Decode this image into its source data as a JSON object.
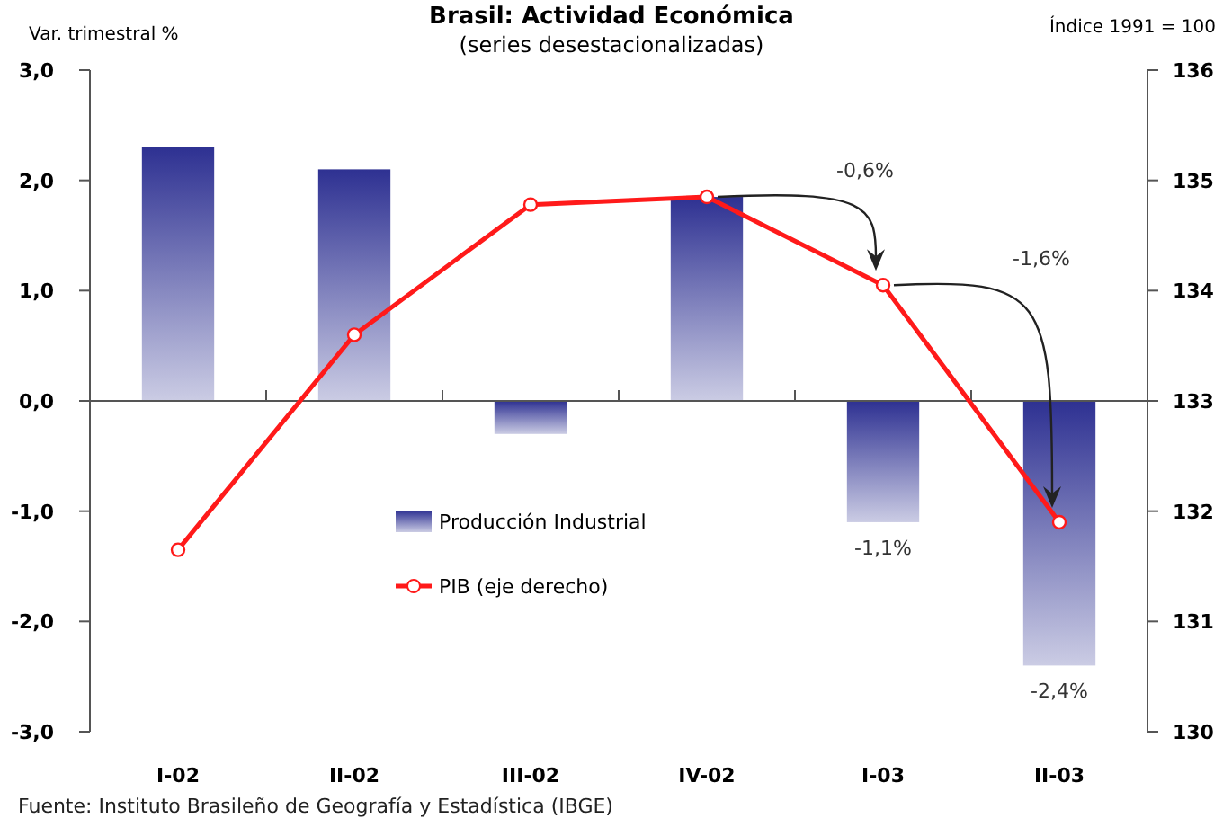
{
  "chart_data": {
    "type": "bar",
    "title": "Brasil: Actividad Económica",
    "subtitle": "(series desestacionalizadas)",
    "ylabel": "Var. trimestral %",
    "y2label": "Índice 1991 = 100",
    "categories": [
      "I-02",
      "II-02",
      "III-02",
      "IV-02",
      "I-03",
      "II-03"
    ],
    "series": [
      {
        "name": "Producción Industrial",
        "color": "#2e3192",
        "values": [
          2.3,
          2.1,
          -0.3,
          1.85,
          -1.1,
          -2.4
        ],
        "value_labels": [
          null,
          null,
          null,
          null,
          "-1,1%",
          "-2,4%"
        ]
      },
      {
        "name": "PIB (eje derecho)",
        "type": "line",
        "axis": "y2",
        "color": "#ff1a1a",
        "marker": "circle",
        "values": [
          131.65,
          133.6,
          134.78,
          134.85,
          134.05,
          131.9
        ]
      }
    ],
    "ylim": [
      -3,
      3
    ],
    "yticks": [
      {
        "value": -3,
        "label": "-3,0"
      },
      {
        "value": -2,
        "label": "-2,0"
      },
      {
        "value": -1,
        "label": "-1,0"
      },
      {
        "value": 0,
        "label": "0,0"
      },
      {
        "value": 1,
        "label": "1,0"
      },
      {
        "value": 2,
        "label": "2,0"
      },
      {
        "value": 3,
        "label": "3,0"
      }
    ],
    "y2lim": [
      130,
      136
    ],
    "y2ticks": [
      130,
      131,
      132,
      133,
      134,
      135,
      136
    ],
    "legend": "center left",
    "annotations": [
      "-0,6%",
      "-1,6%",
      "Fuente: Instituto Brasileño de Geografía y Estadística (IBGE)"
    ]
  }
}
